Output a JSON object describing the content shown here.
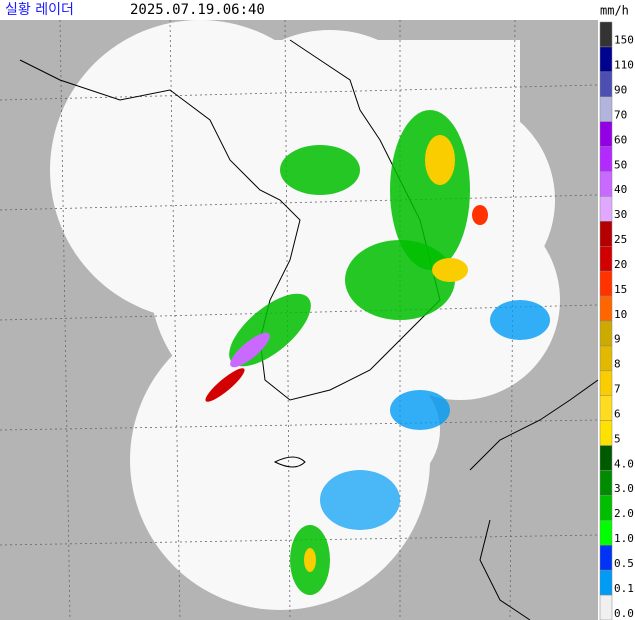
{
  "header": {
    "title": "실황 레이더",
    "time": "2025.07.19.06:40",
    "unit": "mm/h"
  },
  "legend": {
    "items": [
      {
        "label": "150",
        "color": "#333333"
      },
      {
        "label": "110",
        "color": "#000390"
      },
      {
        "label": "90",
        "color": "#4c4eb1"
      },
      {
        "label": "70",
        "color": "#b3b4de"
      },
      {
        "label": "60",
        "color": "#9300e4"
      },
      {
        "label": "50",
        "color": "#b329ff"
      },
      {
        "label": "40",
        "color": "#c969ff"
      },
      {
        "label": "30",
        "color": "#e0a9ff"
      },
      {
        "label": "25",
        "color": "#b40000"
      },
      {
        "label": "20",
        "color": "#d20000"
      },
      {
        "label": "15",
        "color": "#ff3200"
      },
      {
        "label": "10",
        "color": "#ff6600"
      },
      {
        "label": "9",
        "color": "#ccaa00"
      },
      {
        "label": "8",
        "color": "#e0b900"
      },
      {
        "label": "7",
        "color": "#f9cd00"
      },
      {
        "label": "6",
        "color": "#ffdc1f"
      },
      {
        "label": "5",
        "color": "#ffe100"
      },
      {
        "label": "4.0",
        "color": "#005a00"
      },
      {
        "label": "3.0",
        "color": "#008c00"
      },
      {
        "label": "2.0",
        "color": "#00be00"
      },
      {
        "label": "1.0",
        "color": "#00ff00"
      },
      {
        "label": "0.5",
        "color": "#0033f5"
      },
      {
        "label": "0.1",
        "color": "#009bf5"
      },
      {
        "label": "0.0",
        "color": "#f0f0f0"
      }
    ]
  }
}
